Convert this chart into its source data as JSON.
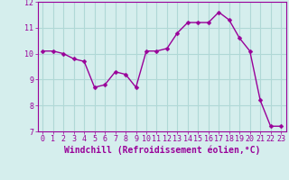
{
  "x": [
    0,
    1,
    2,
    3,
    4,
    5,
    6,
    7,
    8,
    9,
    10,
    11,
    12,
    13,
    14,
    15,
    16,
    17,
    18,
    19,
    20,
    21,
    22,
    23
  ],
  "y": [
    10.1,
    10.1,
    10.0,
    9.8,
    9.7,
    8.7,
    8.8,
    9.3,
    9.2,
    8.7,
    10.1,
    10.1,
    10.2,
    10.8,
    11.2,
    11.2,
    11.2,
    11.6,
    11.3,
    10.6,
    10.1,
    8.2,
    7.2,
    7.2
  ],
  "line_color": "#990099",
  "marker": "D",
  "marker_size": 2.5,
  "background_color": "#d5eeed",
  "grid_color": "#b0d8d6",
  "xlabel": "Windchill (Refroidissement éolien,°C)",
  "xlabel_color": "#990099",
  "tick_color": "#990099",
  "ylim": [
    7,
    12
  ],
  "xlim": [
    -0.5,
    23.5
  ],
  "yticks": [
    7,
    8,
    9,
    10,
    11,
    12
  ],
  "xticks": [
    0,
    1,
    2,
    3,
    4,
    5,
    6,
    7,
    8,
    9,
    10,
    11,
    12,
    13,
    14,
    15,
    16,
    17,
    18,
    19,
    20,
    21,
    22,
    23
  ],
  "line_width": 1.0,
  "tick_fontsize": 6,
  "xlabel_fontsize": 7
}
